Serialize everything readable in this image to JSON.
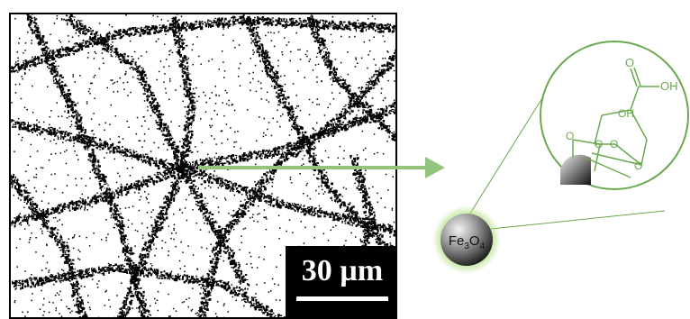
{
  "scale_bar": {
    "label": "30 µm"
  },
  "nanoparticle": {
    "label_base": "Fe",
    "sub1": "3",
    "mid": "O",
    "sub2": "4"
  },
  "zoom_inset": {
    "carbonyl_O": "O",
    "hydroxyl_top": "OH",
    "hydroxyl_mid": "OH",
    "ring_O_1": "O",
    "ring_O_2": "O",
    "ring_O_3": "O",
    "ring_O_4": "O"
  },
  "colors": {
    "arrow": "#93c47d",
    "chemistry": "#6aa84f",
    "glow": "#b6e08a",
    "particle_dark": "#1a1a1a",
    "particle_light": "#dcdcdc"
  }
}
